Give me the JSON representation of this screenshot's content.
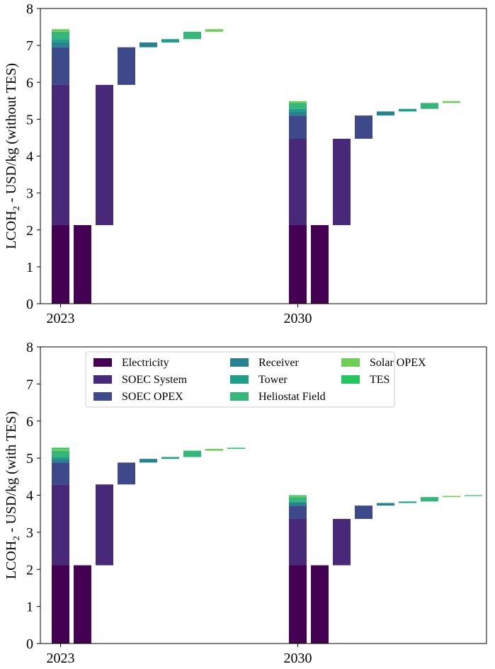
{
  "colors": {
    "Electricity": "#440154",
    "SOEC System": "#482878",
    "SOEC OPEX": "#3e4989",
    "Receiver": "#26828e",
    "Tower": "#1f9e89",
    "Heliostat Field": "#35b779",
    "Solar OPEX": "#6ece58",
    "TES": "#22c55e"
  },
  "chart_data": [
    {
      "type": "bar",
      "title": "",
      "xlabel": "",
      "ylabel_prefix": "LCOH",
      "ylabel_sub": "2",
      "ylabel_suffix": " - USD/kg (without TES)",
      "ylim": [
        0,
        8
      ],
      "yticks": [
        "0",
        "1",
        "2",
        "3",
        "4",
        "5",
        "6",
        "7",
        "8"
      ],
      "categories": [
        "2023",
        "2030"
      ],
      "legend": null,
      "groups": [
        {
          "year": "2023",
          "components": [
            {
              "name": "Electricity",
              "value": 2.13
            },
            {
              "name": "SOEC System",
              "value": 3.8
            },
            {
              "name": "SOEC OPEX",
              "value": 1.02
            },
            {
              "name": "Receiver",
              "value": 0.13
            },
            {
              "name": "Tower",
              "value": 0.09
            },
            {
              "name": "Heliostat Field",
              "value": 0.2
            },
            {
              "name": "Solar OPEX",
              "value": 0.07
            }
          ]
        },
        {
          "year": "2030",
          "components": [
            {
              "name": "Electricity",
              "value": 2.13
            },
            {
              "name": "SOEC System",
              "value": 2.34
            },
            {
              "name": "SOEC OPEX",
              "value": 0.63
            },
            {
              "name": "Receiver",
              "value": 0.11
            },
            {
              "name": "Tower",
              "value": 0.07
            },
            {
              "name": "Heliostat Field",
              "value": 0.16
            },
            {
              "name": "Solar OPEX",
              "value": 0.05
            }
          ]
        }
      ]
    },
    {
      "type": "bar",
      "title": "",
      "xlabel": "",
      "ylabel_prefix": "LCOH",
      "ylabel_sub": "2",
      "ylabel_suffix": " - USD/kg (with TES)",
      "ylim": [
        0,
        8
      ],
      "yticks": [
        "0",
        "1",
        "2",
        "3",
        "4",
        "5",
        "6",
        "7",
        "8"
      ],
      "categories": [
        "2023",
        "2030"
      ],
      "legend": {
        "placement": "top-center",
        "entries": [
          "Electricity",
          "SOEC System",
          "SOEC OPEX",
          "Receiver",
          "Tower",
          "Heliostat Field",
          "Solar OPEX",
          "TES"
        ]
      },
      "groups": [
        {
          "year": "2023",
          "components": [
            {
              "name": "Electricity",
              "value": 2.11
            },
            {
              "name": "SOEC System",
              "value": 2.18
            },
            {
              "name": "SOEC OPEX",
              "value": 0.59
            },
            {
              "name": "Receiver",
              "value": 0.1
            },
            {
              "name": "Tower",
              "value": 0.05
            },
            {
              "name": "Heliostat Field",
              "value": 0.17
            },
            {
              "name": "Solar OPEX",
              "value": 0.05
            },
            {
              "name": "TES",
              "value": 0.03
            }
          ]
        },
        {
          "year": "2030",
          "components": [
            {
              "name": "Electricity",
              "value": 2.11
            },
            {
              "name": "SOEC System",
              "value": 1.25
            },
            {
              "name": "SOEC OPEX",
              "value": 0.36
            },
            {
              "name": "Receiver",
              "value": 0.07
            },
            {
              "name": "Tower",
              "value": 0.04
            },
            {
              "name": "Heliostat Field",
              "value": 0.12
            },
            {
              "name": "Solar OPEX",
              "value": 0.03
            },
            {
              "name": "TES",
              "value": 0.02
            }
          ]
        }
      ]
    }
  ]
}
